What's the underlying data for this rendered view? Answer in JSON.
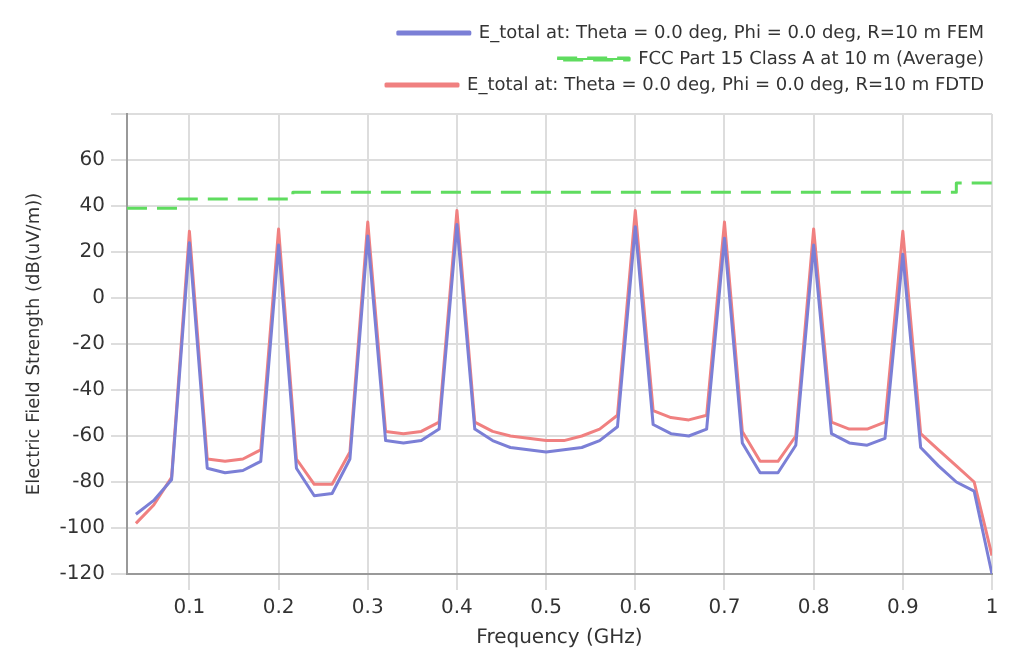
{
  "chart_data": {
    "type": "line",
    "xlabel": "Frequency (GHz)",
    "ylabel": "Electric Field Strength (dB(uV/m))",
    "xlim": [
      0.03,
      1.0
    ],
    "xticks": [
      0.1,
      0.2,
      0.3,
      0.4,
      0.5,
      0.6,
      0.7,
      0.8,
      0.9,
      {
        "value": 1.0,
        "label": "1"
      }
    ],
    "ylim": [
      -120,
      80
    ],
    "yticks": [
      -120,
      -100,
      -80,
      -60,
      -40,
      -20,
      0,
      20,
      40,
      60,
      {
        "value": 80,
        "label": null
      }
    ],
    "grid": true,
    "legend": "top right",
    "marker": "none",
    "x": [
      0.04,
      0.06,
      0.08,
      0.1,
      0.12,
      0.14,
      0.16,
      0.18,
      0.2,
      0.22,
      0.24,
      0.26,
      0.28,
      0.3,
      0.32,
      0.34,
      0.36,
      0.38,
      0.4,
      0.42,
      0.44,
      0.46,
      0.48,
      0.5,
      0.52,
      0.54,
      0.56,
      0.58,
      0.6,
      0.62,
      0.64,
      0.66,
      0.68,
      0.7,
      0.72,
      0.74,
      0.76,
      0.78,
      0.8,
      0.82,
      0.84,
      0.86,
      0.88,
      0.9,
      0.92,
      0.94,
      0.96,
      0.98,
      1.0
    ],
    "series": [
      {
        "name": "E_total at: Theta = 0.0 deg, Phi = 0.0 deg, R=10 m FEM",
        "color": "#7b7fd6",
        "line_style": "solid",
        "values": [
          -94,
          -88,
          -79,
          24,
          -74,
          -76,
          -75,
          -71,
          23,
          -74,
          -86,
          -85,
          -70,
          27,
          -62,
          -63,
          -62,
          -57,
          32,
          -57,
          -62,
          -65,
          -66,
          -67,
          -66,
          -65,
          -62,
          -56,
          31,
          -55,
          -59,
          -60,
          -57,
          26,
          -63,
          -76,
          -76,
          -64,
          23,
          -59,
          -63,
          -64,
          -61,
          19,
          -65,
          -73,
          -80,
          -84,
          -120
        ]
      },
      {
        "name": "FCC Part 15 Class A at 10 m (Average)",
        "type": "step",
        "color": "#5fdc5f",
        "line_style": "dashed",
        "x": [
          0.03,
          0.088,
          0.216,
          0.96,
          1.0
        ],
        "values": [
          39,
          43,
          46,
          50,
          50
        ]
      },
      {
        "name": "E_total at: Theta = 0.0 deg, Phi = 0.0 deg, R=10 m FDTD",
        "color": "#f08080",
        "line_style": "solid",
        "values": [
          -98,
          -90,
          -78,
          29,
          -70,
          -71,
          -70,
          -66,
          30,
          -70,
          -81,
          -81,
          -67,
          33,
          -58,
          -59,
          -58,
          -54,
          38,
          -54,
          -58,
          -60,
          -61,
          -62,
          -62,
          -60,
          -57,
          -51,
          38,
          -49,
          -52,
          -53,
          -51,
          33,
          -58,
          -71,
          -71,
          -60,
          30,
          -54,
          -57,
          -57,
          -54,
          29,
          -59,
          -66,
          -73,
          -80,
          -112
        ]
      }
    ]
  }
}
